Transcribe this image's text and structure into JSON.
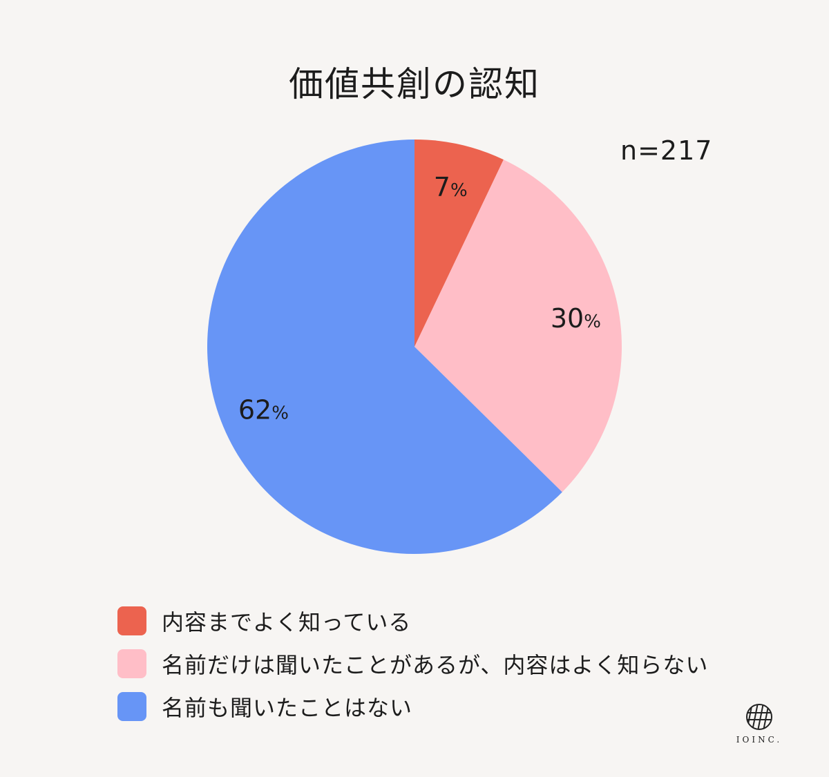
{
  "chart_data": {
    "type": "pie",
    "title": "価値共創の認知",
    "annotation": "n=217",
    "categories": [
      "内容までよく知っている",
      "名前だけは聞いたことがあるが、内容はよく知らない",
      "名前も聞いたことはない"
    ],
    "values": [
      7,
      30,
      62
    ],
    "data_labels": [
      "7%",
      "30%",
      "62%"
    ],
    "colors": [
      "#ec634f",
      "#ffbec7",
      "#6795f6"
    ],
    "legend_position": "bottom-left",
    "start_angle": "12 o'clock",
    "direction": "clockwise"
  },
  "logo": {
    "text": "IOINC.",
    "icon": "hatched-circle-logo-icon"
  }
}
